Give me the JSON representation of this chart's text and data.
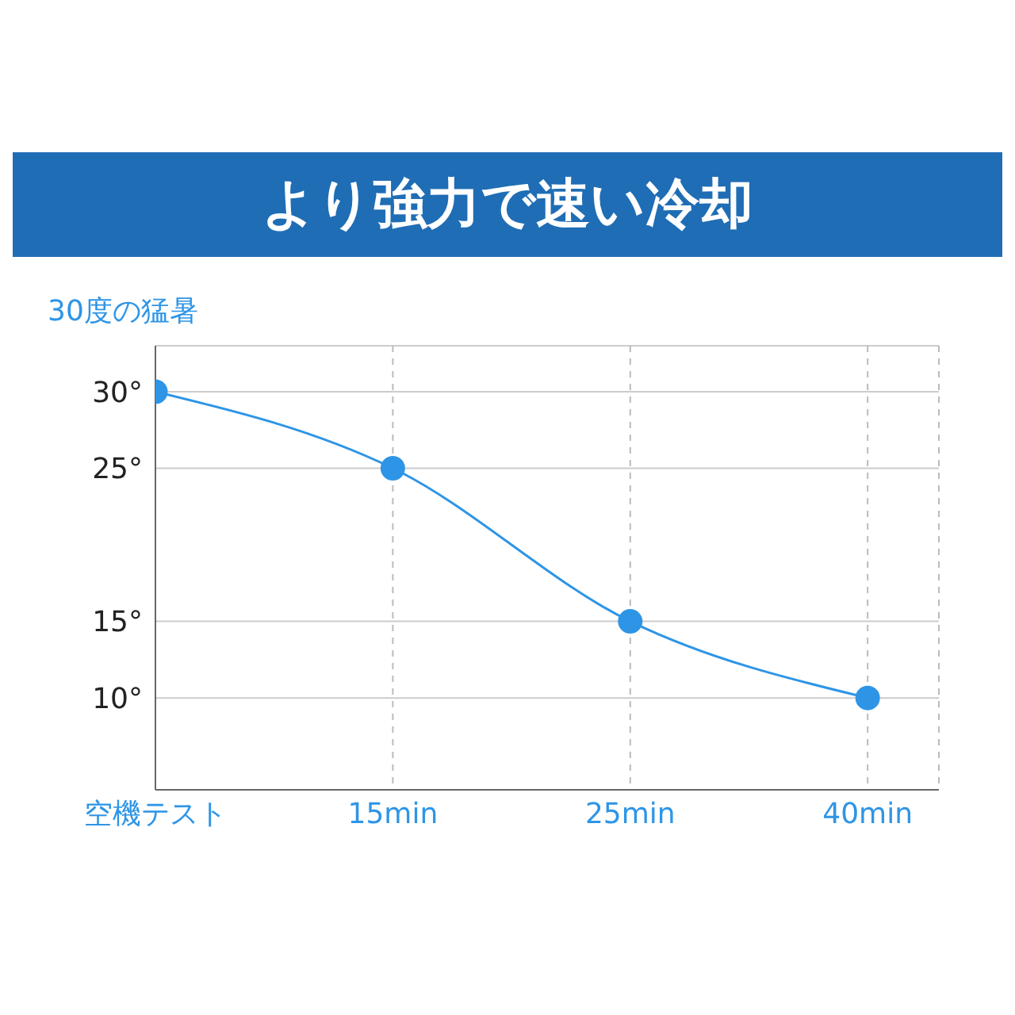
{
  "chart_data": {
    "type": "line",
    "title": "より強力で速い冷却",
    "ylabel": "30度の猛暑",
    "categories": [
      "空機テスト",
      "15min",
      "25min",
      "40min"
    ],
    "series": [
      {
        "color": "#2e95e6",
        "values": [
          30,
          25,
          15,
          10
        ]
      }
    ],
    "ylim": [
      4,
      33
    ],
    "yticks": [
      {
        "value": 30,
        "label": "30°"
      },
      {
        "value": 25,
        "label": "25°"
      },
      {
        "value": 15,
        "label": "15°"
      },
      {
        "value": 10,
        "label": "10°"
      }
    ],
    "grid": true,
    "marker": "circle",
    "line_style": "solid"
  }
}
